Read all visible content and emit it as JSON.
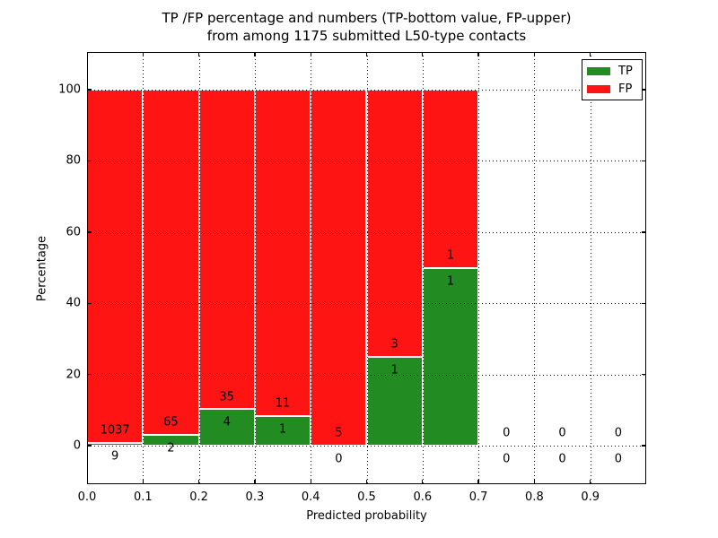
{
  "chart_data": {
    "type": "bar",
    "stacked": true,
    "normalized_to": 100,
    "title_line1": "TP /FP percentage and numbers (TP-bottom value, FP-upper)",
    "title_line2": "from among 1175 submitted L50-type contacts",
    "xlabel": "Predicted probability",
    "ylabel": "Percentage",
    "xlim": [
      0.0,
      1.0
    ],
    "ylim": [
      -10.8,
      110.6
    ],
    "xticks": [
      "0.0",
      "0.1",
      "0.2",
      "0.3",
      "0.4",
      "0.5",
      "0.6",
      "0.7",
      "0.8",
      "0.9"
    ],
    "yticks": [
      "0",
      "20",
      "40",
      "60",
      "80",
      "100"
    ],
    "grid": {
      "on": true,
      "style": "dotted",
      "color": "#000000"
    },
    "colors": {
      "tp": "#228b22",
      "fp": "#ff1414",
      "bar_edge": "#ffffff",
      "text": "#000000"
    },
    "legend": [
      {
        "label": "TP",
        "color": "#228b22"
      },
      {
        "label": "FP",
        "color": "#ff1414"
      }
    ],
    "legend_position": "upper right",
    "bins": [
      {
        "x_start": 0.0,
        "x_end": 0.1,
        "tp": 9,
        "fp": 1037
      },
      {
        "x_start": 0.1,
        "x_end": 0.2,
        "tp": 2,
        "fp": 65
      },
      {
        "x_start": 0.2,
        "x_end": 0.3,
        "tp": 4,
        "fp": 35
      },
      {
        "x_start": 0.3,
        "x_end": 0.4,
        "tp": 1,
        "fp": 11
      },
      {
        "x_start": 0.4,
        "x_end": 0.5,
        "tp": 0,
        "fp": 5
      },
      {
        "x_start": 0.5,
        "x_end": 0.6,
        "tp": 1,
        "fp": 3
      },
      {
        "x_start": 0.6,
        "x_end": 0.7,
        "tp": 1,
        "fp": 1
      },
      {
        "x_start": 0.7,
        "x_end": 0.8,
        "tp": 0,
        "fp": 0
      },
      {
        "x_start": 0.8,
        "x_end": 0.9,
        "tp": 0,
        "fp": 0
      },
      {
        "x_start": 0.9,
        "x_end": 1.0,
        "tp": 0,
        "fp": 0
      }
    ]
  }
}
